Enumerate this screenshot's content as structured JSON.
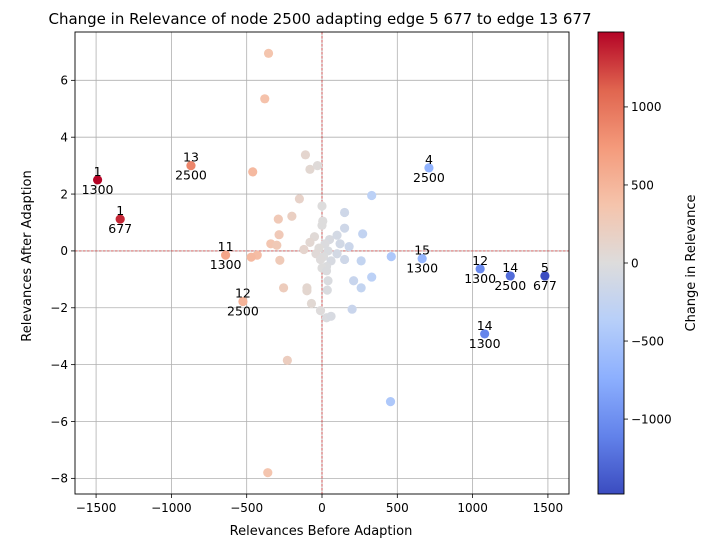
{
  "chart_data": {
    "type": "scatter",
    "title": "Change in Relevance of node 2500 adapting edge   5  677 to edge 13  677",
    "xlabel": "Relevances Before Adaption",
    "ylabel": "Relevances After Adaption",
    "xlim": [
      -1640,
      1640
    ],
    "ylim": [
      -8.55,
      7.7
    ],
    "xticks": [
      -1500,
      -1000,
      -500,
      0,
      500,
      1000,
      1500
    ],
    "yticks": [
      -8,
      -6,
      -4,
      -2,
      0,
      2,
      4,
      6
    ],
    "xtick_labels": [
      "−1500",
      "−1000",
      "−500",
      "0",
      "500",
      "1000",
      "1500"
    ],
    "ytick_labels": [
      "−8",
      "−6",
      "−4",
      "−2",
      "0",
      "2",
      "4",
      "6"
    ],
    "grid": true,
    "reference_lines": {
      "x": 0,
      "y": 0,
      "color": "#d62728",
      "style": "dashed"
    },
    "colorbar": {
      "label": "Change in Relevance",
      "colormap": "coolwarm",
      "range": [
        -1480,
        1480
      ],
      "ticks": [
        1000,
        500,
        0,
        -500,
        -1000
      ],
      "tick_labels": [
        "1000",
        "500",
        "0",
        "−500",
        "−1000"
      ]
    },
    "points": [
      {
        "x": -1490,
        "y": 2.5
      },
      {
        "x": -1340,
        "y": 1.12
      },
      {
        "x": -870,
        "y": 3.0
      },
      {
        "x": -640,
        "y": -0.15
      },
      {
        "x": -525,
        "y": -1.78
      },
      {
        "x": 710,
        "y": 2.92
      },
      {
        "x": 665,
        "y": -0.27
      },
      {
        "x": 1050,
        "y": -0.63
      },
      {
        "x": 1250,
        "y": -0.88
      },
      {
        "x": 1480,
        "y": -0.88
      },
      {
        "x": 1080,
        "y": -2.92
      },
      {
        "x": -355,
        "y": 6.95
      },
      {
        "x": -380,
        "y": 5.35
      },
      {
        "x": -460,
        "y": 2.78
      },
      {
        "x": -110,
        "y": 3.38
      },
      {
        "x": -80,
        "y": 2.87
      },
      {
        "x": -30,
        "y": 3.0
      },
      {
        "x": -150,
        "y": 1.83
      },
      {
        "x": -200,
        "y": 1.22
      },
      {
        "x": -290,
        "y": 1.12
      },
      {
        "x": -285,
        "y": 0.57
      },
      {
        "x": -340,
        "y": 0.25
      },
      {
        "x": -300,
        "y": 0.2
      },
      {
        "x": -430,
        "y": -0.15
      },
      {
        "x": -470,
        "y": -0.22
      },
      {
        "x": -280,
        "y": -0.33
      },
      {
        "x": -255,
        "y": -1.3
      },
      {
        "x": -100,
        "y": -1.3
      },
      {
        "x": -100,
        "y": -1.4
      },
      {
        "x": -70,
        "y": -1.85
      },
      {
        "x": -10,
        "y": -2.1
      },
      {
        "x": 30,
        "y": -2.35
      },
      {
        "x": 60,
        "y": -2.3
      },
      {
        "x": -230,
        "y": -3.85
      },
      {
        "x": -360,
        "y": -7.8
      },
      {
        "x": 0,
        "y": 1.58
      },
      {
        "x": 5,
        "y": 1.05
      },
      {
        "x": 0,
        "y": 0.9
      },
      {
        "x": -50,
        "y": 0.5
      },
      {
        "x": 50,
        "y": 0.4
      },
      {
        "x": 20,
        "y": 0.25
      },
      {
        "x": -20,
        "y": 0.1
      },
      {
        "x": 40,
        "y": 0.0
      },
      {
        "x": -40,
        "y": -0.1
      },
      {
        "x": 10,
        "y": -0.2
      },
      {
        "x": -10,
        "y": -0.3
      },
      {
        "x": 60,
        "y": -0.35
      },
      {
        "x": 30,
        "y": -0.55
      },
      {
        "x": 0,
        "y": -0.6
      },
      {
        "x": 30,
        "y": -0.7
      },
      {
        "x": 40,
        "y": -1.05
      },
      {
        "x": 35,
        "y": -1.38
      },
      {
        "x": -120,
        "y": 0.05
      },
      {
        "x": -80,
        "y": 0.3
      },
      {
        "x": 100,
        "y": 0.55
      },
      {
        "x": 120,
        "y": 0.25
      },
      {
        "x": 150,
        "y": 0.8
      },
      {
        "x": 150,
        "y": 1.35
      },
      {
        "x": 100,
        "y": -0.1
      },
      {
        "x": 150,
        "y": -0.3
      },
      {
        "x": 180,
        "y": 0.15
      },
      {
        "x": 270,
        "y": 0.6
      },
      {
        "x": 330,
        "y": 1.95
      },
      {
        "x": 210,
        "y": -1.05
      },
      {
        "x": 260,
        "y": -0.35
      },
      {
        "x": 260,
        "y": -1.3
      },
      {
        "x": 200,
        "y": -2.05
      },
      {
        "x": 330,
        "y": -0.92
      },
      {
        "x": 460,
        "y": -0.2
      },
      {
        "x": 455,
        "y": -5.3
      }
    ],
    "annotations": [
      {
        "x": -1490,
        "y": 2.5,
        "top": "1",
        "bottom": "1300"
      },
      {
        "x": -1340,
        "y": 1.12,
        "top": "1",
        "bottom": "677"
      },
      {
        "x": -870,
        "y": 3.0,
        "top": "13",
        "bottom": "2500"
      },
      {
        "x": -640,
        "y": -0.15,
        "top": "11",
        "bottom": "1300"
      },
      {
        "x": -525,
        "y": -1.78,
        "top": "12",
        "bottom": "2500"
      },
      {
        "x": 710,
        "y": 2.92,
        "top": "4",
        "bottom": "2500"
      },
      {
        "x": 665,
        "y": -0.27,
        "top": "15",
        "bottom": "1300"
      },
      {
        "x": 1050,
        "y": -0.63,
        "top": "12",
        "bottom": "1300"
      },
      {
        "x": 1250,
        "y": -0.88,
        "top": "14",
        "bottom": "2500"
      },
      {
        "x": 1480,
        "y": -0.88,
        "top": "5",
        "bottom": "677"
      },
      {
        "x": 1080,
        "y": -2.92,
        "top": "14",
        "bottom": "1300"
      }
    ]
  }
}
